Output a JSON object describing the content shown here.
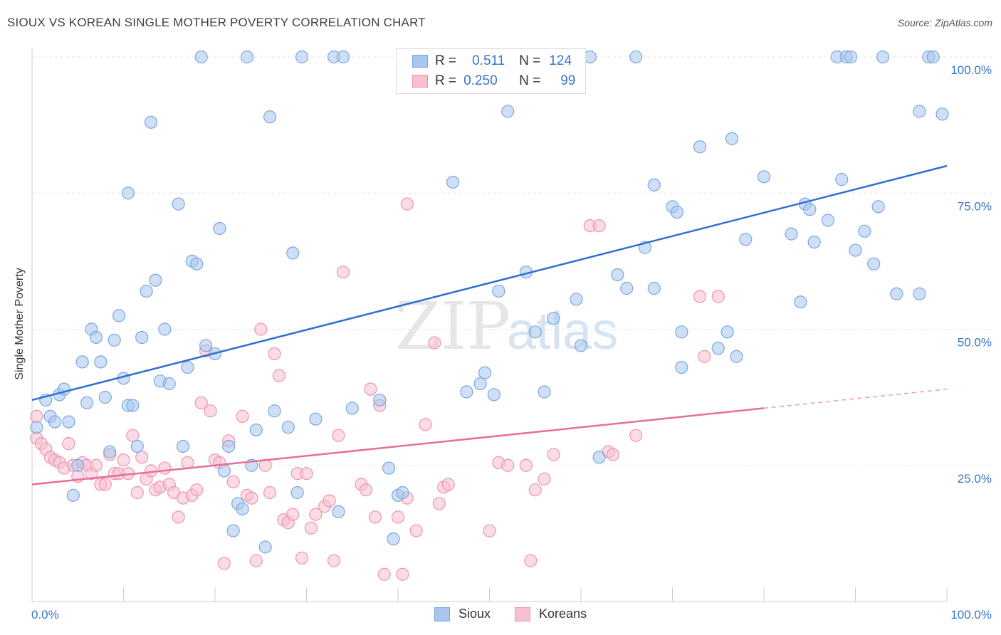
{
  "title": "SIOUX VS KOREAN SINGLE MOTHER POVERTY CORRELATION CHART",
  "source": "Source: ZipAtlas.com",
  "watermark": {
    "part1": "ZIP",
    "part2": "atlas"
  },
  "legend": {
    "rows": [
      {
        "r_label": "R =",
        "r_value": "0.511",
        "n_label": "N =",
        "n_value": "124",
        "color": "#a8c6ef",
        "border": "#7aa7e0"
      },
      {
        "r_label": "R =",
        "r_value": "0.250",
        "n_label": "N =",
        "n_value": "99",
        "color": "#f7bfd0",
        "border": "#ee93b2"
      }
    ]
  },
  "bottom_legend": [
    {
      "label": "Sioux",
      "color": "#a8c6ef",
      "border": "#7aa7e0"
    },
    {
      "label": "Koreans",
      "color": "#f7bfd0",
      "border": "#ee93b2"
    }
  ],
  "chart_data": {
    "type": "scatter",
    "title": "SIOUX VS KOREAN SINGLE MOTHER POVERTY CORRELATION CHART",
    "xlabel": "",
    "ylabel": "Single Mother Poverty",
    "xlim": [
      0,
      100
    ],
    "ylim": [
      0,
      102
    ],
    "x_tick_labels": [
      "0.0%",
      "100.0%"
    ],
    "y_tick_values": [
      25,
      50,
      75,
      100
    ],
    "y_tick_labels": [
      "25.0%",
      "50.0%",
      "75.0%",
      "100.0%"
    ],
    "grid": true,
    "series": [
      {
        "name": "Sioux",
        "color": "#7aa7e0",
        "fill": "#a8c6ef",
        "line_color": "#2f6fcf",
        "trend": {
          "x0": 0,
          "y0": 37,
          "x1": 100,
          "y1": 80
        },
        "points": [
          [
            0.5,
            32
          ],
          [
            1.5,
            37
          ],
          [
            2,
            34
          ],
          [
            2.5,
            33
          ],
          [
            3,
            38
          ],
          [
            3.5,
            39
          ],
          [
            4,
            33
          ],
          [
            4.5,
            19.5
          ],
          [
            5,
            25
          ],
          [
            5.5,
            44
          ],
          [
            6,
            36.5
          ],
          [
            6.5,
            50
          ],
          [
            7,
            48.5
          ],
          [
            7.5,
            44
          ],
          [
            8,
            37.5
          ],
          [
            8.5,
            27.5
          ],
          [
            9,
            48
          ],
          [
            9.5,
            52.5
          ],
          [
            10,
            41
          ],
          [
            10.5,
            75
          ],
          [
            10.5,
            36
          ],
          [
            11,
            36
          ],
          [
            11.5,
            28.5
          ],
          [
            12,
            48.5
          ],
          [
            12.5,
            57
          ],
          [
            13,
            88
          ],
          [
            13.5,
            59
          ],
          [
            14,
            40.5
          ],
          [
            14.5,
            50
          ],
          [
            15,
            40
          ],
          [
            16,
            73
          ],
          [
            16.5,
            28.5
          ],
          [
            17,
            43
          ],
          [
            17.5,
            62.5
          ],
          [
            18,
            62
          ],
          [
            18.5,
            100
          ],
          [
            19,
            47
          ],
          [
            20,
            45.5
          ],
          [
            20.5,
            68.5
          ],
          [
            21,
            24
          ],
          [
            21.5,
            28.5
          ],
          [
            22,
            13
          ],
          [
            22.5,
            18
          ],
          [
            23,
            17
          ],
          [
            23.5,
            100
          ],
          [
            24,
            25
          ],
          [
            24.5,
            31.5
          ],
          [
            25.5,
            10
          ],
          [
            26,
            89
          ],
          [
            26.5,
            35
          ],
          [
            28,
            32
          ],
          [
            28.5,
            64
          ],
          [
            29,
            20
          ],
          [
            29.5,
            100
          ],
          [
            31,
            33.5
          ],
          [
            33,
            100
          ],
          [
            33.5,
            16.5
          ],
          [
            34,
            100
          ],
          [
            35,
            35.5
          ],
          [
            38,
            37
          ],
          [
            39,
            24.5
          ],
          [
            39.5,
            11.5
          ],
          [
            40,
            19.5
          ],
          [
            40.5,
            20
          ],
          [
            46,
            77
          ],
          [
            47.5,
            38.5
          ],
          [
            49,
            40
          ],
          [
            49.5,
            42
          ],
          [
            50.5,
            38
          ],
          [
            51,
            57
          ],
          [
            52,
            90
          ],
          [
            54,
            60.5
          ],
          [
            55,
            49.5
          ],
          [
            56,
            38.5
          ],
          [
            57,
            52
          ],
          [
            59.5,
            55.5
          ],
          [
            60,
            47
          ],
          [
            61,
            100
          ],
          [
            62,
            26.5
          ],
          [
            64,
            60
          ],
          [
            65,
            57.5
          ],
          [
            66,
            100
          ],
          [
            67,
            65
          ],
          [
            68,
            76.5
          ],
          [
            68,
            57.5
          ],
          [
            70,
            72.5
          ],
          [
            70.5,
            71.5
          ],
          [
            71,
            43
          ],
          [
            71,
            49.5
          ],
          [
            73,
            83.5
          ],
          [
            75,
            46.5
          ],
          [
            76,
            49.5
          ],
          [
            76.5,
            85
          ],
          [
            77,
            45
          ],
          [
            78,
            66.5
          ],
          [
            80,
            78
          ],
          [
            83,
            67.5
          ],
          [
            84,
            55
          ],
          [
            84.5,
            73
          ],
          [
            85,
            72
          ],
          [
            85.5,
            66
          ],
          [
            87,
            70
          ],
          [
            88,
            100
          ],
          [
            88.5,
            77.5
          ],
          [
            89,
            100
          ],
          [
            89.5,
            100
          ],
          [
            90,
            64.5
          ],
          [
            91,
            68
          ],
          [
            92,
            62
          ],
          [
            92.5,
            72.5
          ],
          [
            93,
            100
          ],
          [
            94.5,
            56.5
          ],
          [
            97,
            56.5
          ],
          [
            97,
            90
          ],
          [
            98,
            100
          ],
          [
            98.5,
            100
          ],
          [
            99.5,
            89.5
          ]
        ]
      },
      {
        "name": "Koreans",
        "color": "#ee93b2",
        "fill": "#f7bfd0",
        "line_color": "#e76d9b",
        "trend": {
          "x0": 0,
          "y0": 21.5,
          "x1": 80,
          "y1": 35.5
        },
        "trend_dashed": {
          "x0": 80,
          "y0": 35.5,
          "x1": 100,
          "y1": 39
        },
        "points": [
          [
            0.5,
            34
          ],
          [
            0.5,
            30
          ],
          [
            1,
            29
          ],
          [
            1.5,
            28
          ],
          [
            2,
            26.5
          ],
          [
            2.5,
            26
          ],
          [
            3,
            25.5
          ],
          [
            3.5,
            24.5
          ],
          [
            4,
            29
          ],
          [
            4.5,
            25
          ],
          [
            5,
            23
          ],
          [
            5.5,
            25.5
          ],
          [
            6,
            25
          ],
          [
            6.5,
            23.5
          ],
          [
            7,
            25
          ],
          [
            7.5,
            21.5
          ],
          [
            8,
            21.5
          ],
          [
            8.5,
            27
          ],
          [
            9,
            23.5
          ],
          [
            9.5,
            23.5
          ],
          [
            10,
            26
          ],
          [
            10.5,
            23.5
          ],
          [
            11,
            30.5
          ],
          [
            11.5,
            20
          ],
          [
            12,
            26.5
          ],
          [
            12.5,
            22.5
          ],
          [
            13,
            24
          ],
          [
            13.5,
            20.5
          ],
          [
            14,
            21
          ],
          [
            14.5,
            24.5
          ],
          [
            15,
            21.5
          ],
          [
            15.5,
            20
          ],
          [
            16,
            15.5
          ],
          [
            16.5,
            19
          ],
          [
            17,
            25.5
          ],
          [
            17.5,
            19.5
          ],
          [
            18,
            20.5
          ],
          [
            18.5,
            36.5
          ],
          [
            19,
            46
          ],
          [
            19.5,
            35
          ],
          [
            20,
            26
          ],
          [
            20.5,
            25.5
          ],
          [
            21,
            7
          ],
          [
            21.5,
            29.5
          ],
          [
            22,
            22
          ],
          [
            23,
            34
          ],
          [
            23.5,
            19.5
          ],
          [
            24,
            19
          ],
          [
            24.5,
            7.5
          ],
          [
            25,
            50
          ],
          [
            25.5,
            25
          ],
          [
            26,
            20
          ],
          [
            26.5,
            45.5
          ],
          [
            27,
            41.5
          ],
          [
            27.5,
            15
          ],
          [
            28,
            14.5
          ],
          [
            28.5,
            16
          ],
          [
            29,
            23.5
          ],
          [
            29.5,
            8
          ],
          [
            30,
            23.5
          ],
          [
            30.5,
            13.5
          ],
          [
            31,
            16
          ],
          [
            32,
            17.5
          ],
          [
            32.5,
            18.5
          ],
          [
            33,
            7.5
          ],
          [
            33.5,
            30.5
          ],
          [
            34,
            60.5
          ],
          [
            36,
            21.5
          ],
          [
            36.5,
            20.5
          ],
          [
            37,
            39
          ],
          [
            37.5,
            15.5
          ],
          [
            38,
            36
          ],
          [
            38.5,
            5
          ],
          [
            40,
            15.5
          ],
          [
            40.5,
            5
          ],
          [
            41,
            19
          ],
          [
            42,
            13
          ],
          [
            43,
            32.5
          ],
          [
            44,
            47.5
          ],
          [
            44.5,
            18
          ],
          [
            45,
            21
          ],
          [
            50,
            13
          ],
          [
            51,
            25.5
          ],
          [
            52,
            25
          ],
          [
            54,
            25
          ],
          [
            54.5,
            7.5
          ],
          [
            55,
            20.5
          ],
          [
            56,
            22.5
          ],
          [
            57,
            27
          ],
          [
            61,
            69
          ],
          [
            62,
            69
          ],
          [
            63,
            27.5
          ],
          [
            63.5,
            27
          ],
          [
            66,
            30.5
          ],
          [
            73,
            56
          ],
          [
            73.5,
            45
          ],
          [
            75,
            56
          ],
          [
            45.5,
            21.5
          ],
          [
            41,
            73
          ]
        ]
      }
    ]
  }
}
